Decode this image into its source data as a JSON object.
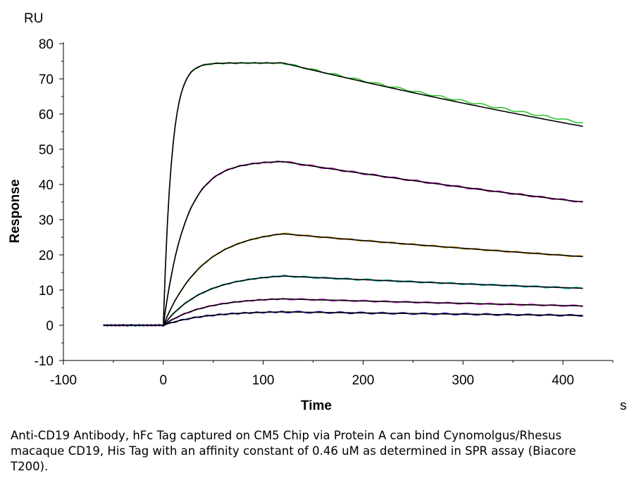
{
  "chart_data": {
    "type": "line",
    "ylabel": "Response",
    "xlabel": "Time",
    "y_unit": "RU",
    "x_unit": "s",
    "xlim": [
      -100,
      450
    ],
    "ylim": [
      -10,
      80
    ],
    "x_ticks": [
      -100,
      0,
      100,
      200,
      300,
      400
    ],
    "y_ticks": [
      -10,
      0,
      10,
      20,
      30,
      40,
      50,
      60,
      70,
      80
    ],
    "grid": false,
    "legend": "none",
    "baseline_x": [
      -60,
      0
    ],
    "association_x": [
      0,
      120
    ],
    "dissociation_x": [
      120,
      420
    ],
    "series": [
      {
        "color": "#2ec42e",
        "fit_color": "#000000",
        "peak": 74.5,
        "end": 56.5,
        "k": 18
      },
      {
        "color": "#c020c0",
        "fit_color": "#000000",
        "peak": 46.5,
        "end": 35.0,
        "k": 8
      },
      {
        "color": "#e0a020",
        "fit_color": "#000000",
        "peak": 26.0,
        "end": 19.5,
        "k": 3.5
      },
      {
        "color": "#20c0c0",
        "fit_color": "#000000",
        "peak": 14.0,
        "end": 10.5,
        "k": 1.6
      },
      {
        "color": "#e040e0",
        "fit_color": "#000000",
        "peak": 7.5,
        "end": 5.5,
        "k": 0.8
      },
      {
        "color": "#2020c0",
        "fit_color": "#000000",
        "peak": 3.8,
        "end": 2.8,
        "k": 0.4
      }
    ]
  },
  "caption": "Anti-CD19 Antibody, hFc Tag captured on CM5 Chip via Protein A can bind Cynomolgus/Rhesus macaque CD19, His Tag with an affinity constant of 0.46 uM as determined in SPR assay (Biacore T200)."
}
